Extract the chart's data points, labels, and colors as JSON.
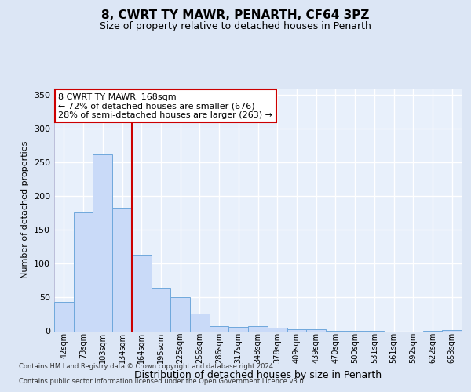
{
  "title_line1": "8, CWRT TY MAWR, PENARTH, CF64 3PZ",
  "title_line2": "Size of property relative to detached houses in Penarth",
  "xlabel": "Distribution of detached houses by size in Penarth",
  "ylabel": "Number of detached properties",
  "bar_labels": [
    "42sqm",
    "73sqm",
    "103sqm",
    "134sqm",
    "164sqm",
    "195sqm",
    "225sqm",
    "256sqm",
    "286sqm",
    "317sqm",
    "348sqm",
    "378sqm",
    "409sqm",
    "439sqm",
    "470sqm",
    "500sqm",
    "531sqm",
    "561sqm",
    "592sqm",
    "622sqm",
    "653sqm"
  ],
  "bar_values": [
    44,
    176,
    262,
    183,
    113,
    65,
    51,
    26,
    8,
    6,
    8,
    5,
    3,
    3,
    1,
    1,
    1,
    0,
    0,
    1,
    2
  ],
  "bar_color": "#c9daf8",
  "bar_edge_color": "#6fa8dc",
  "vline_x_index": 3.5,
  "vline_color": "#cc0000",
  "annotation_line1": "8 CWRT TY MAWR: 168sqm",
  "annotation_line2": "← 72% of detached houses are smaller (676)",
  "annotation_line3": "28% of semi-detached houses are larger (263) →",
  "annotation_box_color": "#ffffff",
  "annotation_box_edge": "#cc0000",
  "ylim": [
    0,
    360
  ],
  "yticks": [
    0,
    50,
    100,
    150,
    200,
    250,
    300,
    350
  ],
  "footer_line1": "Contains HM Land Registry data © Crown copyright and database right 2024.",
  "footer_line2": "Contains public sector information licensed under the Open Government Licence v3.0.",
  "bg_color": "#dce6f5",
  "plot_bg_color": "#e8f0fb",
  "grid_color": "#ffffff",
  "title1_fontsize": 11,
  "title2_fontsize": 9,
  "xlabel_fontsize": 9,
  "ylabel_fontsize": 8,
  "tick_fontsize": 7,
  "annot_fontsize": 8,
  "footer_fontsize": 6
}
